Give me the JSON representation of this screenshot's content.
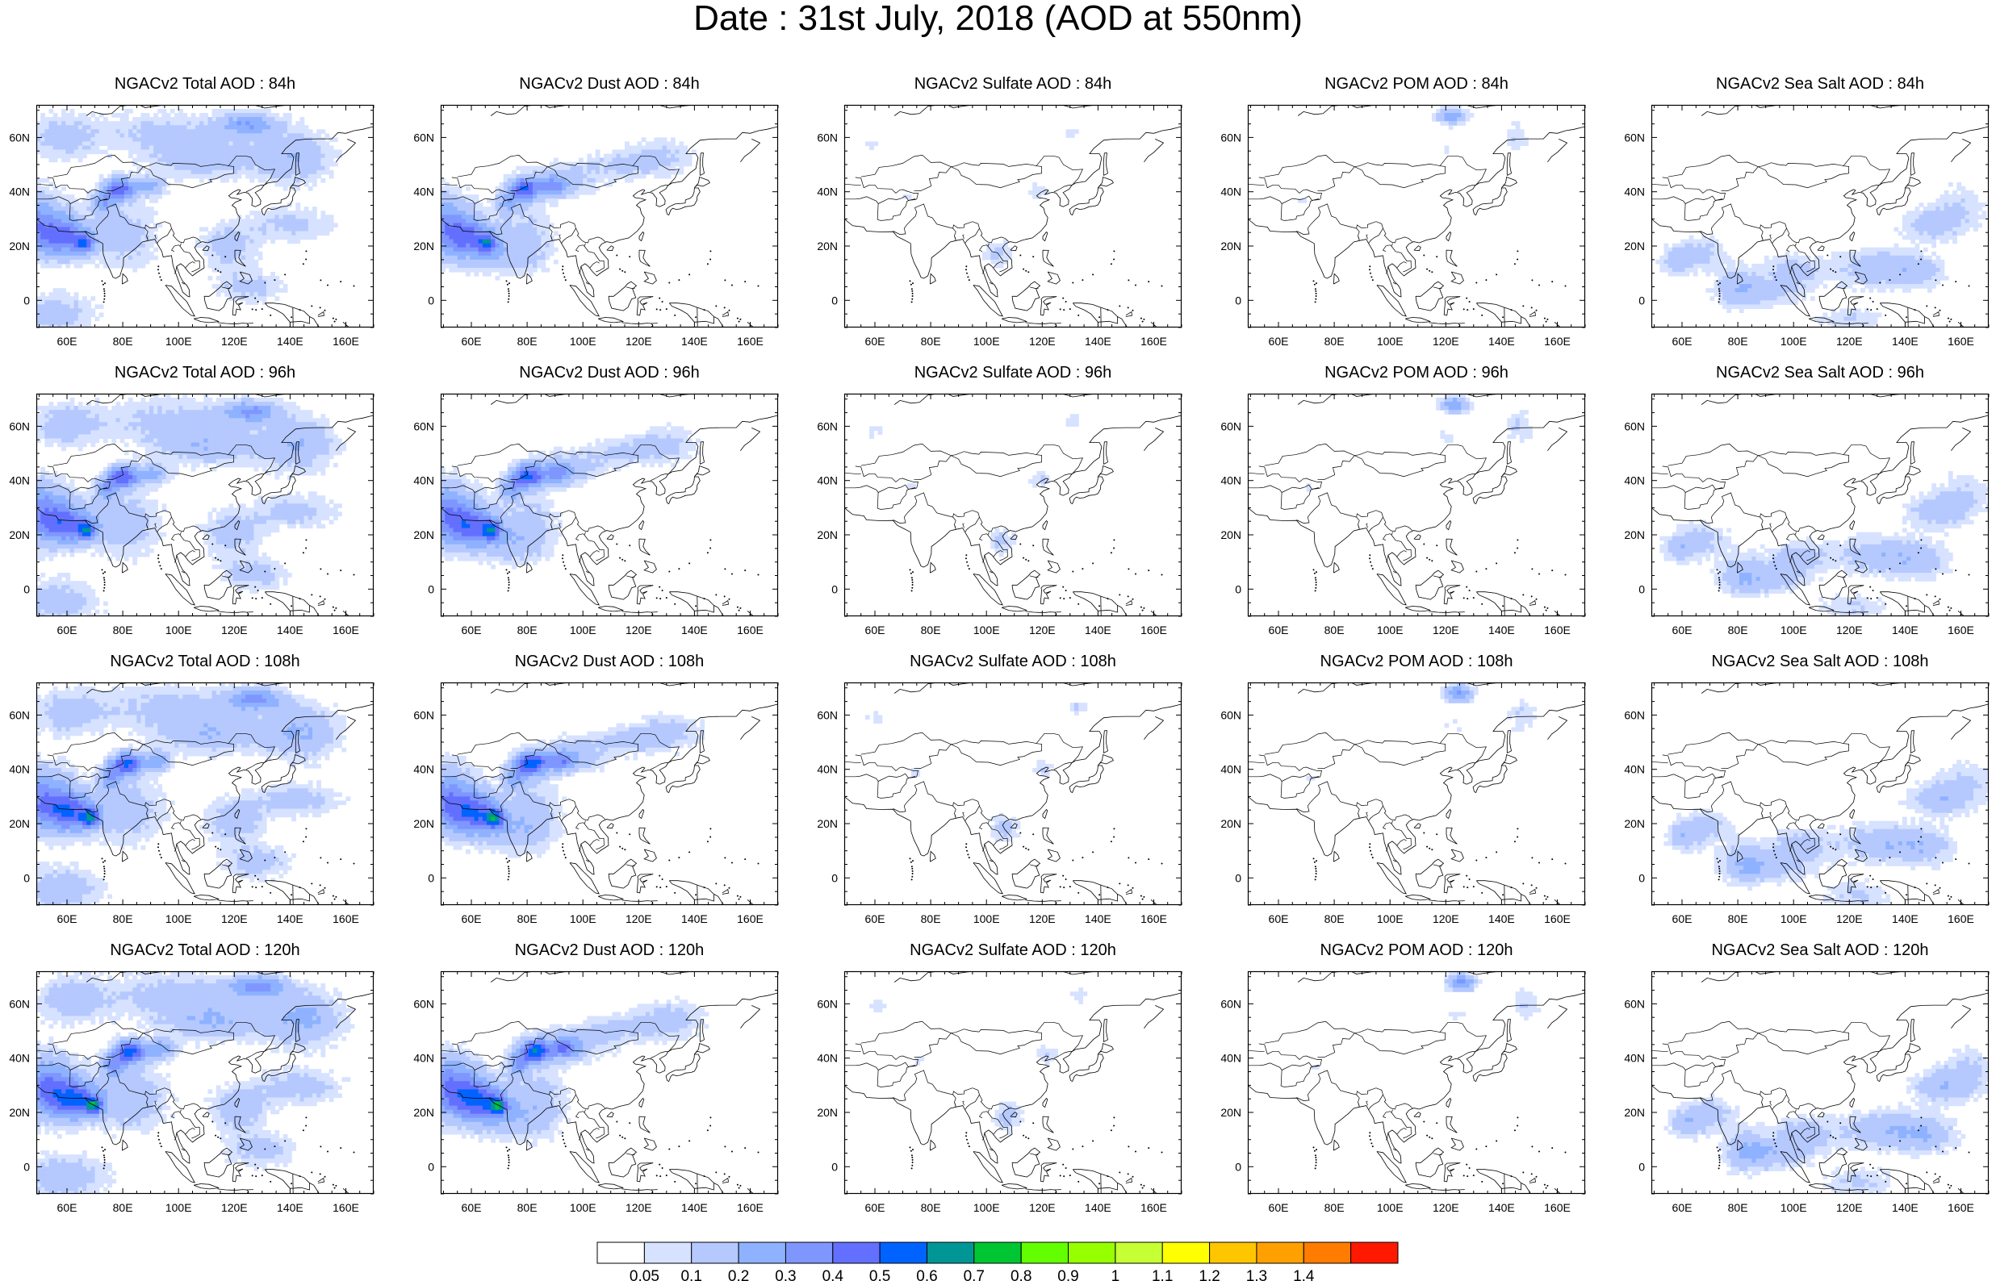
{
  "title": "Date : 31st July, 2018 (AOD at 550nm)",
  "map_axes": {
    "lon_ticks": [
      "60E",
      "80E",
      "100E",
      "120E",
      "140E",
      "160E"
    ],
    "lon_values": [
      60,
      80,
      100,
      120,
      140,
      160
    ],
    "lat_ticks": [
      "60N",
      "40N",
      "20N",
      "0"
    ],
    "lat_values": [
      60,
      40,
      20,
      0
    ],
    "lon_range": [
      49,
      170
    ],
    "lat_range": [
      -10,
      72
    ]
  },
  "panels": [
    {
      "title": "NGACv2 Total AOD : 84h",
      "product": "total"
    },
    {
      "title": "NGACv2 Dust AOD : 84h",
      "product": "dust"
    },
    {
      "title": "NGACv2 Sulfate AOD : 84h",
      "product": "sulfate"
    },
    {
      "title": "NGACv2 POM AOD : 84h",
      "product": "pom"
    },
    {
      "title": "NGACv2 Sea Salt AOD : 84h",
      "product": "seasalt"
    },
    {
      "title": "NGACv2 Total AOD : 96h",
      "product": "total"
    },
    {
      "title": "NGACv2 Dust AOD : 96h",
      "product": "dust"
    },
    {
      "title": "NGACv2 Sulfate AOD : 96h",
      "product": "sulfate"
    },
    {
      "title": "NGACv2 POM AOD : 96h",
      "product": "pom"
    },
    {
      "title": "NGACv2 Sea Salt AOD : 96h",
      "product": "seasalt"
    },
    {
      "title": "NGACv2 Total AOD : 108h",
      "product": "total"
    },
    {
      "title": "NGACv2 Dust AOD : 108h",
      "product": "dust"
    },
    {
      "title": "NGACv2 Sulfate AOD : 108h",
      "product": "sulfate"
    },
    {
      "title": "NGACv2 POM AOD : 108h",
      "product": "pom"
    },
    {
      "title": "NGACv2 Sea Salt AOD : 108h",
      "product": "seasalt"
    },
    {
      "title": "NGACv2 Total AOD : 120h",
      "product": "total"
    },
    {
      "title": "NGACv2 Dust AOD : 120h",
      "product": "dust"
    },
    {
      "title": "NGACv2 Sulfate AOD : 120h",
      "product": "sulfate"
    },
    {
      "title": "NGACv2 POM AOD : 120h",
      "product": "pom"
    },
    {
      "title": "NGACv2 Sea Salt  AOD : 120h",
      "product": "seasalt"
    }
  ],
  "colorbar": {
    "labels": [
      "0.05",
      "0.1",
      "0.2",
      "0.3",
      "0.4",
      "0.5",
      "0.6",
      "0.7",
      "0.8",
      "0.9",
      "1",
      "1.1",
      "1.2",
      "1.3",
      "1.4"
    ],
    "colors": [
      "#ffffff",
      "#d6e2ff",
      "#b5c9ff",
      "#8eb2ff",
      "#7f96ff",
      "#6370ff",
      "#0063ff",
      "#009696",
      "#00c633",
      "#63ff00",
      "#96ff00",
      "#c6ff33",
      "#ffff00",
      "#ffc600",
      "#ffa000",
      "#ff7c00",
      "#ff1900"
    ]
  }
}
